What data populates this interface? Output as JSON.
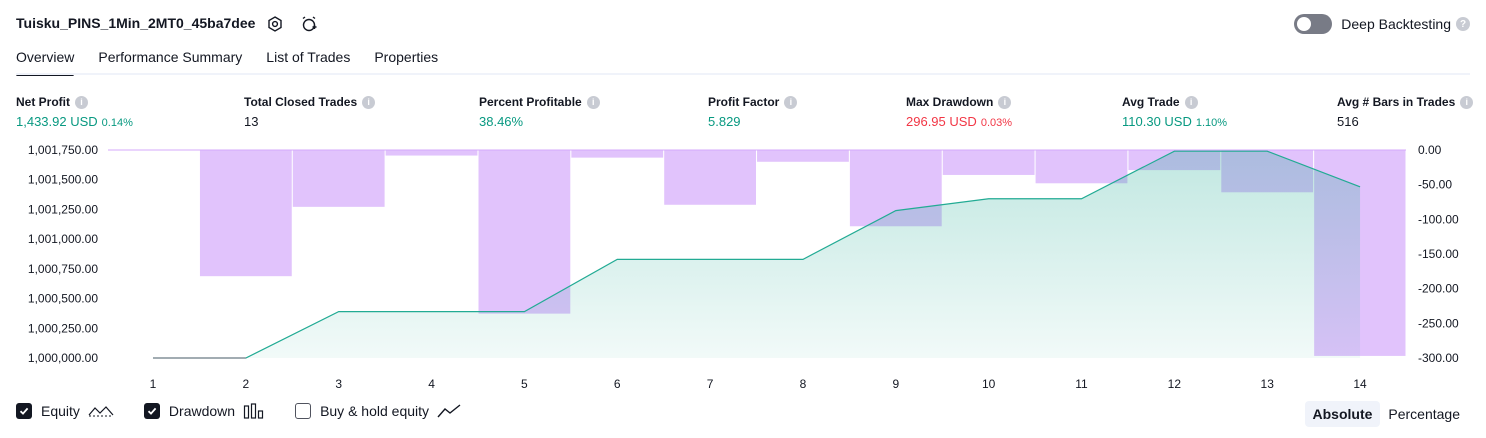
{
  "header": {
    "title": "Tuisku_PINS_1Min_2MT0_45ba7dee",
    "deep_backtesting_label": "Deep Backtesting",
    "deep_backtesting_enabled": false
  },
  "tabs": [
    {
      "label": "Overview",
      "active": true
    },
    {
      "label": "Performance Summary",
      "active": false
    },
    {
      "label": "List of Trades",
      "active": false
    },
    {
      "label": "Properties",
      "active": false
    }
  ],
  "stats": [
    {
      "label": "Net Profit",
      "value": "1,433.92 USD",
      "pct": "0.14%",
      "color": "#089981"
    },
    {
      "label": "Total Closed Trades",
      "value": "13",
      "pct": "",
      "color": "#131722"
    },
    {
      "label": "Percent Profitable",
      "value": "38.46%",
      "pct": "",
      "color": "#089981"
    },
    {
      "label": "Profit Factor",
      "value": "5.829",
      "pct": "",
      "color": "#089981"
    },
    {
      "label": "Max Drawdown",
      "value": "296.95 USD",
      "pct": "0.03%",
      "color": "#f23645"
    },
    {
      "label": "Avg Trade",
      "value": "110.30 USD",
      "pct": "1.10%",
      "color": "#089981"
    },
    {
      "label": "Avg # Bars in Trades",
      "value": "516",
      "pct": "",
      "color": "#131722"
    }
  ],
  "chart_data": {
    "type": "area",
    "x": [
      1,
      2,
      3,
      4,
      5,
      6,
      7,
      8,
      9,
      10,
      11,
      12,
      13,
      14
    ],
    "x_tick_labels": [
      "1",
      "2",
      "3",
      "4",
      "5",
      "6",
      "7",
      "8",
      "9",
      "10",
      "11",
      "12",
      "13",
      "14"
    ],
    "series": [
      {
        "name": "Equity",
        "type": "area",
        "axis": "left",
        "values": [
          1000000.0,
          1000000.0,
          1000390.0,
          1000390.0,
          1000390.0,
          1000830.0,
          1000830.0,
          1000830.0,
          1001240.0,
          1001340.0,
          1001340.0,
          1001740.0,
          1001740.0,
          1001440.0
        ],
        "color": "#22ab94"
      },
      {
        "name": "Drawdown",
        "type": "bar",
        "axis": "right",
        "values": [
          0.0,
          -182.0,
          -82.0,
          -8.0,
          -236.0,
          -11.0,
          -79.0,
          -17.0,
          -110.0,
          -36.0,
          -48.0,
          -29.0,
          -61.0,
          -297.0
        ],
        "color": "#d4a9fb"
      }
    ],
    "left_axis": {
      "ticks": [
        "1,001,750.00",
        "1,001,500.00",
        "1,001,250.00",
        "1,001,000.00",
        "1,000,750.00",
        "1,000,500.00",
        "1,000,250.00",
        "1,000,000.00"
      ],
      "range": [
        1000000,
        1001750
      ]
    },
    "right_axis": {
      "ticks": [
        "0.00",
        "-50.00",
        "-100.00",
        "-150.00",
        "-200.00",
        "-250.00",
        "-300.00"
      ],
      "range": [
        -300,
        0
      ]
    },
    "grid": false
  },
  "legend": [
    {
      "label": "Equity",
      "checked": true,
      "icon": "equity-line-icon"
    },
    {
      "label": "Drawdown",
      "checked": true,
      "icon": "drawdown-bars-icon"
    },
    {
      "label": "Buy & hold equity",
      "checked": false,
      "icon": "buy-hold-line-icon"
    }
  ],
  "modes": [
    {
      "label": "Absolute",
      "active": true
    },
    {
      "label": "Percentage",
      "active": false
    }
  ]
}
